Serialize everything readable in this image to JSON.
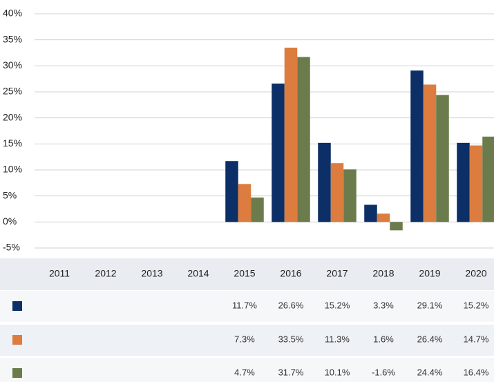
{
  "chart_data": {
    "type": "bar",
    "categories": [
      "2011",
      "2012",
      "2013",
      "2014",
      "2015",
      "2016",
      "2017",
      "2018",
      "2019",
      "2020"
    ],
    "series": [
      {
        "color": "#0b2f66",
        "values": [
          null,
          null,
          null,
          null,
          11.7,
          26.6,
          15.2,
          3.3,
          29.1,
          15.2
        ],
        "value_labels": [
          null,
          null,
          null,
          null,
          "11.7%",
          "26.6%",
          "15.2%",
          "3.3%",
          "29.1%",
          "15.2%"
        ]
      },
      {
        "color": "#dc7c3e",
        "values": [
          null,
          null,
          null,
          null,
          7.3,
          33.5,
          11.3,
          1.6,
          26.4,
          14.7
        ],
        "value_labels": [
          null,
          null,
          null,
          null,
          "7.3%",
          "33.5%",
          "11.3%",
          "1.6%",
          "26.4%",
          "14.7%"
        ]
      },
      {
        "color": "#6b7b4b",
        "values": [
          null,
          null,
          null,
          null,
          4.7,
          31.7,
          10.1,
          -1.6,
          24.4,
          16.4
        ],
        "value_labels": [
          null,
          null,
          null,
          null,
          "4.7%",
          "31.7%",
          "10.1%",
          "-1.6%",
          "24.4%",
          "16.4%"
        ]
      }
    ],
    "ylim": [
      -5,
      40
    ],
    "yticks": [
      {
        "value": -5,
        "label": "-5%"
      },
      {
        "value": 0,
        "label": "0%"
      },
      {
        "value": 5,
        "label": "5%"
      },
      {
        "value": 10,
        "label": "10%"
      },
      {
        "value": 15,
        "label": "15%"
      },
      {
        "value": 20,
        "label": "20%"
      },
      {
        "value": 25,
        "label": "25%"
      },
      {
        "value": 30,
        "label": "30%"
      },
      {
        "value": 35,
        "label": "35%"
      },
      {
        "value": 40,
        "label": "40%"
      }
    ],
    "grid": true
  }
}
